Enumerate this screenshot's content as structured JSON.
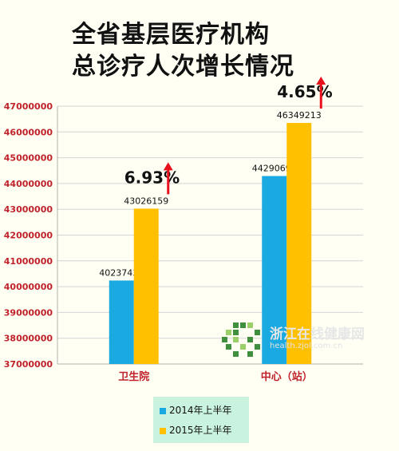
{
  "title": {
    "line1": "全省基层医疗机构",
    "line2": "总诊疗人次增长情况"
  },
  "chart_data": {
    "type": "bar",
    "categories": [
      "卫生院",
      "中心（站）"
    ],
    "series": [
      {
        "name": "2014年上半年",
        "values": [
          40237439,
          44290691
        ],
        "color": "#1aa9e0"
      },
      {
        "name": "2015年上半年",
        "values": [
          43026159,
          46349213
        ],
        "color": "#ffc000"
      }
    ],
    "data_labels": [
      [
        "40237439",
        "44290691"
      ],
      [
        "43026159",
        "46349213"
      ]
    ],
    "growth": [
      "6.93%",
      "4.65%"
    ],
    "ylim": [
      37000000,
      47000000
    ],
    "yticks": [
      "37000000",
      "38000000",
      "39000000",
      "40000000",
      "41000000",
      "42000000",
      "43000000",
      "44000000",
      "45000000",
      "46000000",
      "47000000"
    ],
    "grid": true,
    "legend_position": "bottom"
  },
  "legend": [
    "2014年上半年",
    "2015年上半年"
  ],
  "watermark": {
    "text": "浙江在线健康网",
    "url": "health.zjol.com.cn"
  },
  "colors": {
    "arrow": "#e8101a",
    "axis_text": "#c0222a"
  }
}
